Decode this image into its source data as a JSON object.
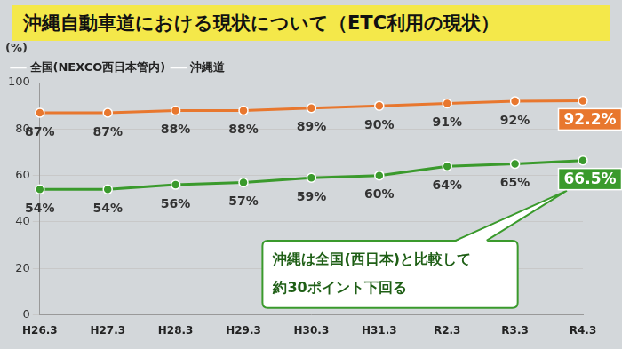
{
  "chart_data": {
    "type": "line",
    "title": "沖縄自動車道における現状について（ETC利用の現状）",
    "ylabel": "(%)",
    "categories": [
      "H26.3",
      "H27.3",
      "H28.3",
      "H29.3",
      "H30.3",
      "H31.3",
      "R2.3",
      "R3.3",
      "R4.3"
    ],
    "series": [
      {
        "name": "全国(NEXCO西日本管内)",
        "color": "#e8772e",
        "marker": "circle",
        "values": [
          87,
          87,
          88,
          88,
          89,
          90,
          91,
          92,
          92.2
        ],
        "value_labels": [
          "87%",
          "87%",
          "88%",
          "88%",
          "89%",
          "90%",
          "91%",
          "92%",
          "92.2%"
        ]
      },
      {
        "name": "沖縄道",
        "color": "#3a9a2c",
        "marker": "circle",
        "values": [
          54,
          54,
          56,
          57,
          59,
          60,
          64,
          65,
          66.5
        ],
        "value_labels": [
          "54%",
          "54%",
          "56%",
          "57%",
          "59%",
          "60%",
          "64%",
          "65%",
          "66.5%"
        ]
      }
    ],
    "ylim": [
      0,
      100
    ],
    "yticks": [
      0,
      20,
      40,
      60,
      80,
      100
    ],
    "grid": true,
    "legend": "top left",
    "data_labels": true,
    "annotation": [
      "沖縄は全国(西日本)と比較して",
      "約30ポイント下回る"
    ]
  }
}
